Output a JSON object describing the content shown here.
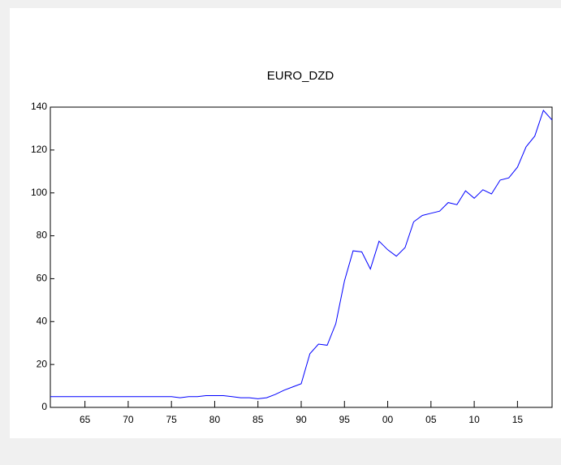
{
  "chart_data": {
    "type": "line",
    "title": "EURO_DZD",
    "x": [
      1961,
      1962,
      1963,
      1964,
      1965,
      1966,
      1967,
      1968,
      1969,
      1970,
      1971,
      1972,
      1973,
      1974,
      1975,
      1976,
      1977,
      1978,
      1979,
      1980,
      1981,
      1982,
      1983,
      1984,
      1985,
      1986,
      1987,
      1988,
      1989,
      1990,
      1991,
      1992,
      1993,
      1994,
      1995,
      1996,
      1997,
      1998,
      1999,
      2000,
      2001,
      2002,
      2003,
      2004,
      2005,
      2006,
      2007,
      2008,
      2009,
      2010,
      2011,
      2012,
      2013,
      2014,
      2015,
      2016,
      2017,
      2018,
      2019
    ],
    "series": [
      {
        "name": "EURO_DZD",
        "color": "#0000ff",
        "values": [
          5,
          5,
          5,
          5,
          5,
          5,
          5,
          5,
          5,
          5,
          5,
          5,
          5,
          5,
          5,
          4.5,
          5,
          5,
          5.5,
          5.5,
          5.5,
          5,
          4.5,
          4.5,
          4,
          4.5,
          6,
          8,
          9.5,
          11,
          25,
          29.5,
          29,
          39,
          59,
          73,
          72.5,
          64.5,
          77.5,
          73.5,
          70.5,
          74.5,
          86.5,
          89.5,
          90.5,
          91.5,
          95.5,
          94.5,
          101,
          97.5,
          101.5,
          99.5,
          106,
          107,
          112,
          121.5,
          126.5,
          138.5,
          134
        ]
      }
    ],
    "xlim": [
      1961,
      2019
    ],
    "xticks": [
      {
        "value": 1965,
        "label": "65"
      },
      {
        "value": 1970,
        "label": "70"
      },
      {
        "value": 1975,
        "label": "75"
      },
      {
        "value": 1980,
        "label": "80"
      },
      {
        "value": 1985,
        "label": "85"
      },
      {
        "value": 1990,
        "label": "90"
      },
      {
        "value": 1995,
        "label": "95"
      },
      {
        "value": 2000,
        "label": "00"
      },
      {
        "value": 2005,
        "label": "05"
      },
      {
        "value": 2010,
        "label": "10"
      },
      {
        "value": 2015,
        "label": "15"
      }
    ],
    "ylim": [
      0,
      140
    ],
    "yticks": [
      0,
      20,
      40,
      60,
      80,
      100,
      120,
      140
    ]
  }
}
